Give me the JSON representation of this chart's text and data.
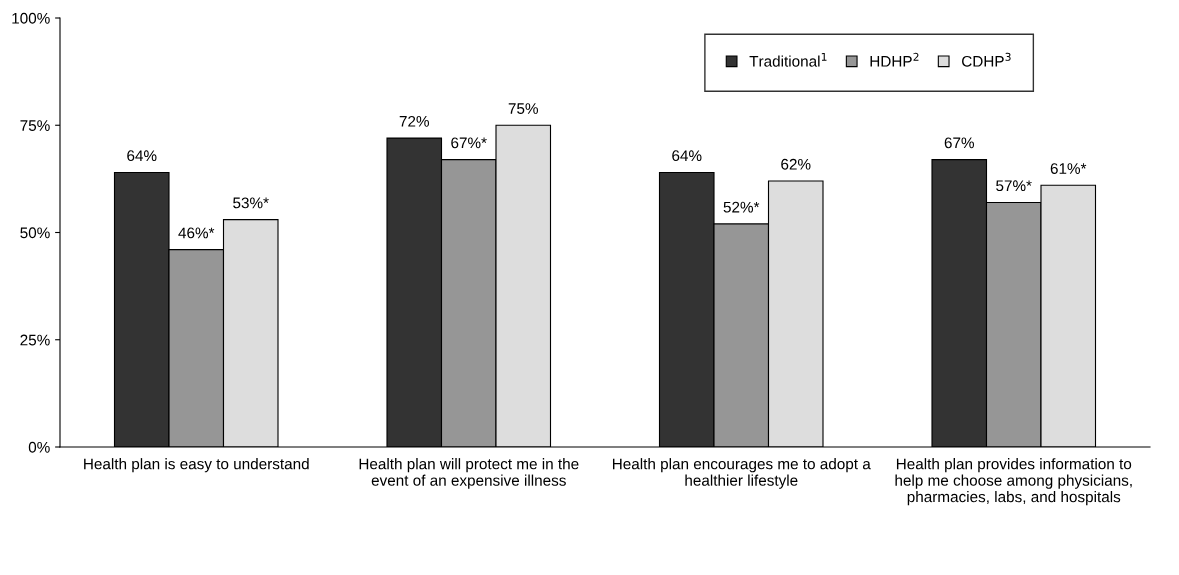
{
  "chart_data": {
    "type": "bar",
    "categories": [
      "Health plan is easy to understand",
      "Health plan will protect me in the event of an expensive illness",
      "Health plan encourages me to adopt a healthier lifestyle",
      "Health plan provides information to help me choose among physicians, pharmacies, labs, and hospitals"
    ],
    "series": [
      {
        "name": "Traditional$^{1}$",
        "color": "#333333",
        "values": [
          64,
          72,
          64,
          67
        ],
        "value_labels": [
          "64%",
          "72%",
          "64%",
          "67%"
        ]
      },
      {
        "name": "HDHP$^{2}$",
        "color": "#969696",
        "values": [
          46,
          67,
          52,
          57
        ],
        "value_labels": [
          "46%*",
          "67%*",
          "52%*",
          "57%*"
        ]
      },
      {
        "name": "CDHP$^{3}$",
        "color": "#dddddd",
        "values": [
          53,
          75,
          62,
          61
        ],
        "value_labels": [
          "53%*",
          "75%",
          "62%",
          "61%*"
        ]
      }
    ],
    "ylim": [
      0,
      100
    ],
    "yticks": [
      {
        "value": 0,
        "label": "0%"
      },
      {
        "value": 25,
        "label": "25%"
      },
      {
        "value": 50,
        "label": "50%"
      },
      {
        "value": 75,
        "label": "75%"
      },
      {
        "value": 100,
        "label": "100%"
      }
    ],
    "grid": false,
    "legend": "top right"
  }
}
